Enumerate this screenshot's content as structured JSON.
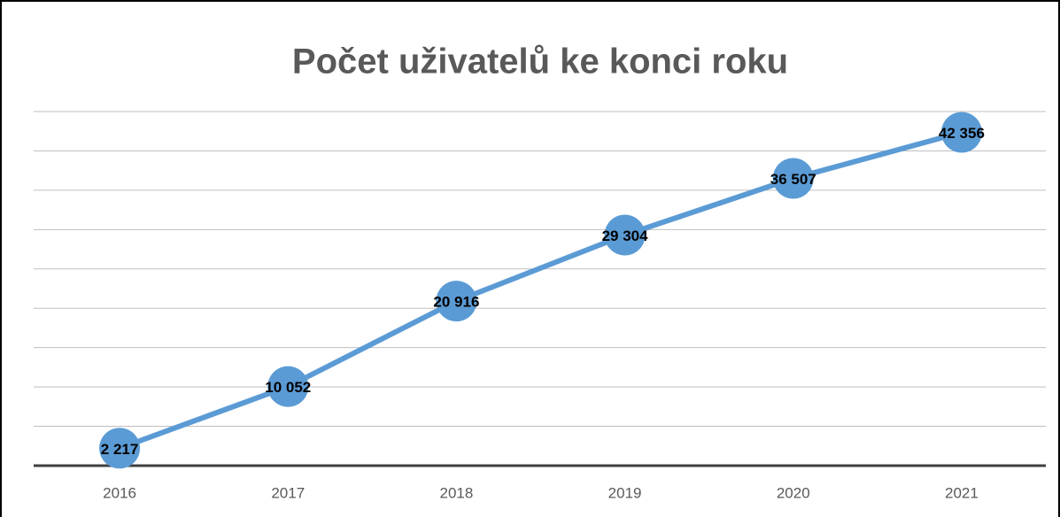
{
  "chart_data": {
    "type": "line",
    "title": "Počet uživatelů ke konci roku",
    "categories": [
      "2016",
      "2017",
      "2018",
      "2019",
      "2020",
      "2021"
    ],
    "series": [
      {
        "name": "Počet uživatelů",
        "color": "#5b9bd5",
        "values": [
          2217,
          10052,
          20916,
          29304,
          36507,
          42356
        ],
        "value_labels": [
          "2 217",
          "10 052",
          "20 916",
          "29 304",
          "36 507",
          "42 356"
        ]
      }
    ],
    "ylim": [
      0,
      45000
    ],
    "yticks": [
      0,
      5000,
      10000,
      15000,
      20000,
      25000,
      30000,
      35000,
      40000,
      45000
    ],
    "grid": true
  }
}
